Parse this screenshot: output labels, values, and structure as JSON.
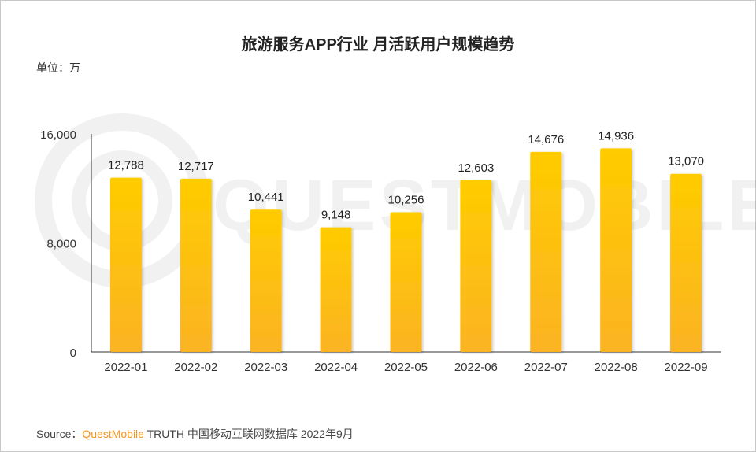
{
  "chart_data": {
    "type": "bar",
    "title": "旅游服务APP行业 月活跃用户规模趋势",
    "unit_label": "单位：万",
    "categories": [
      "2022-01",
      "2022-02",
      "2022-03",
      "2022-04",
      "2022-05",
      "2022-06",
      "2022-07",
      "2022-08",
      "2022-09"
    ],
    "values": [
      12788,
      12717,
      10441,
      9148,
      10256,
      12603,
      14676,
      14936,
      13070
    ],
    "data_labels": [
      "12,788",
      "12,717",
      "10,441",
      "9,148",
      "10,256",
      "12,603",
      "14,676",
      "14,936",
      "13,070"
    ],
    "ylim": [
      0,
      16000
    ],
    "y_ticks": [
      0,
      8000,
      16000
    ],
    "y_tick_labels": [
      "0",
      "8,000",
      "16,000"
    ],
    "grid": false,
    "legend": "none",
    "bar_color_top": "#ffcc00",
    "bar_color_bottom": "#fbb323"
  },
  "watermark": "QUESTMOBILE",
  "source": {
    "prefix": "Source：",
    "brand": "QuestMobile",
    "text": " TRUTH 中国移动互联网数据库 2022年9月",
    "brand_color": "#f7941d"
  }
}
